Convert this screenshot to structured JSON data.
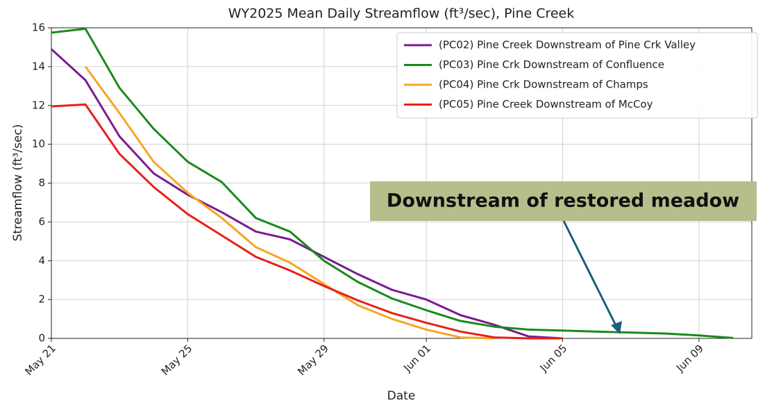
{
  "chart_data": {
    "type": "line",
    "title": "WY2025 Mean Daily Streamflow (ft³/sec), Pine Creek",
    "x_label": "Date",
    "y_label": "Streamflow (ft³/sec)",
    "categories": [
      "May 21",
      null,
      null,
      null,
      "May 25",
      null,
      null,
      null,
      "May 29",
      null,
      null,
      "Jun 01",
      null,
      null,
      null,
      "Jun 05",
      null,
      null,
      null,
      "Jun 09",
      null
    ],
    "series": [
      {
        "name": "(PC02) Pine Creek Downstream of Pine Crk Valley",
        "color": "#7b1a8f",
        "values": [
          14.9,
          13.3,
          10.4,
          8.5,
          7.4,
          6.5,
          5.5,
          5.1,
          4.2,
          3.3,
          2.5,
          2.0,
          1.2,
          0.7,
          0.1,
          0,
          null,
          null,
          null,
          null,
          null
        ]
      },
      {
        "name": "(PC03) Pine Crk Downstream of Confluence",
        "color": "#1a8a1a",
        "values": [
          15.75,
          15.95,
          12.9,
          10.8,
          9.1,
          8.05,
          6.2,
          5.5,
          4.0,
          2.9,
          2.05,
          1.45,
          0.9,
          0.6,
          0.45,
          0.4,
          0.35,
          0.3,
          0.25,
          0.15,
          0.02
        ]
      },
      {
        "name": "(PC04) Pine Crk Downstream of Champs",
        "color": "#f5a623",
        "values": [
          null,
          14.0,
          11.6,
          9.1,
          7.5,
          6.2,
          4.7,
          3.9,
          2.8,
          1.7,
          1.0,
          0.45,
          0.05,
          0,
          null,
          null,
          null,
          null,
          null,
          null,
          null
        ]
      },
      {
        "name": "(PC05) Pine Creek Downstream of McCoy",
        "color": "#e8201a",
        "values": [
          11.95,
          12.05,
          9.5,
          7.8,
          6.4,
          5.3,
          4.2,
          3.5,
          2.7,
          1.95,
          1.3,
          0.8,
          0.35,
          0.05,
          0,
          0,
          null,
          null,
          null,
          null,
          null
        ]
      }
    ],
    "ylim": [
      0,
      16
    ],
    "yticks": [
      0,
      2,
      4,
      6,
      8,
      10,
      12,
      14,
      16
    ],
    "grid": true,
    "legend": "upper right",
    "annotation": "Downstream of restored meadow"
  }
}
